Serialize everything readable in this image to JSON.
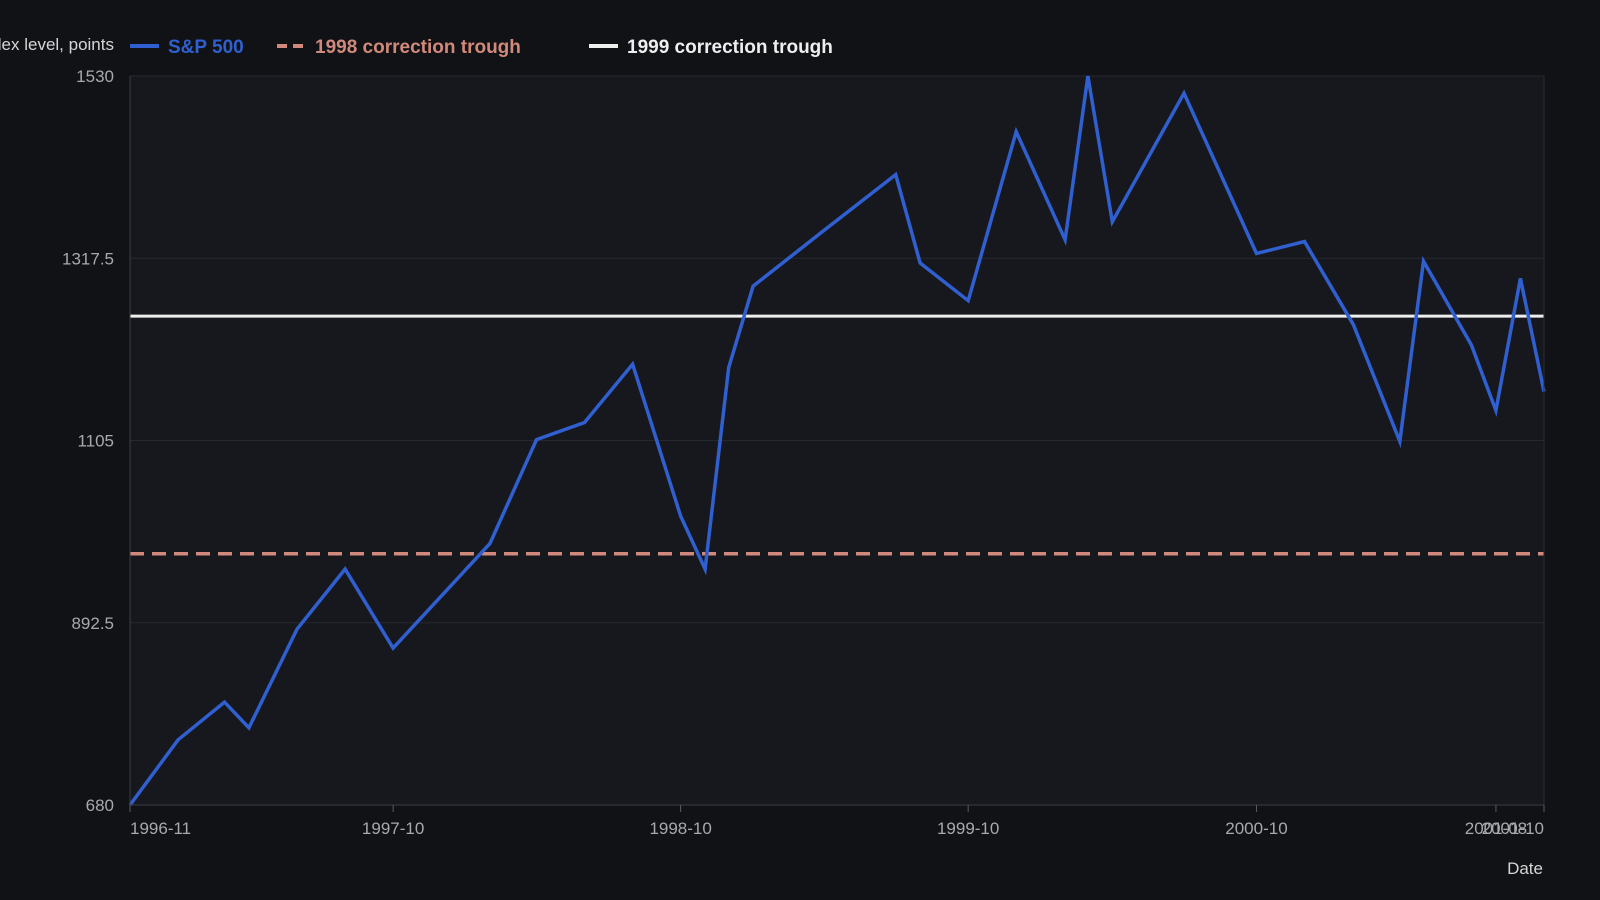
{
  "chart_data": {
    "type": "line",
    "ylabel": "Index level, points",
    "xlabel": "Date",
    "y_ticks": [
      "680",
      "892.5",
      "1105",
      "1317.5",
      "1530"
    ],
    "x_ticks": [
      {
        "label": "1996-11",
        "date": "1996-11-01"
      },
      {
        "label": "1997-10",
        "date": "1997-10-01"
      },
      {
        "label": "1998-10",
        "date": "1998-10-01"
      },
      {
        "label": "1999-10",
        "date": "1999-10-01"
      },
      {
        "label": "2000-10",
        "date": "2000-10-01"
      },
      {
        "label": "2001-08",
        "date": "2001-08-01"
      },
      {
        "label": "2001-10",
        "date": "2001-10-01"
      }
    ],
    "ylim": [
      680,
      1530
    ],
    "xlim": [
      "1996-11-01",
      "2001-10-01"
    ],
    "grid": true,
    "legend_position": "top",
    "series": [
      {
        "name": "S&P 500",
        "color": "#2f5fd0",
        "style": "solid",
        "points": [
          {
            "x": "1996-11-01",
            "y": 680
          },
          {
            "x": "1997-01-01",
            "y": 756
          },
          {
            "x": "1997-03-01",
            "y": 800
          },
          {
            "x": "1997-04-01",
            "y": 770
          },
          {
            "x": "1997-06-01",
            "y": 885
          },
          {
            "x": "1997-08-01",
            "y": 955
          },
          {
            "x": "1997-10-01",
            "y": 863
          },
          {
            "x": "1998-02-01",
            "y": 985
          },
          {
            "x": "1998-04-01",
            "y": 1106
          },
          {
            "x": "1998-06-01",
            "y": 1126
          },
          {
            "x": "1998-08-01",
            "y": 1194
          },
          {
            "x": "1998-10-01",
            "y": 1017
          },
          {
            "x": "1998-11-01",
            "y": 955
          },
          {
            "x": "1998-12-01",
            "y": 1190
          },
          {
            "x": "1999-01-01",
            "y": 1285
          },
          {
            "x": "1999-04-01",
            "y": 1350
          },
          {
            "x": "1999-07-01",
            "y": 1415
          },
          {
            "x": "1999-08-01",
            "y": 1312
          },
          {
            "x": "1999-10-01",
            "y": 1268
          },
          {
            "x": "1999-12-01",
            "y": 1465
          },
          {
            "x": "2000-02-01",
            "y": 1339
          },
          {
            "x": "2000-03-01",
            "y": 1530
          },
          {
            "x": "2000-04-01",
            "y": 1360
          },
          {
            "x": "2000-07-01",
            "y": 1510
          },
          {
            "x": "2000-10-01",
            "y": 1323
          },
          {
            "x": "2000-12-01",
            "y": 1337
          },
          {
            "x": "2001-02-01",
            "y": 1240
          },
          {
            "x": "2001-04-01",
            "y": 1104
          },
          {
            "x": "2001-05-01",
            "y": 1314
          },
          {
            "x": "2001-07-01",
            "y": 1216
          },
          {
            "x": "2001-08-01",
            "y": 1140
          },
          {
            "x": "2001-09-01",
            "y": 1294
          },
          {
            "x": "2001-10-01",
            "y": 1162
          }
        ]
      },
      {
        "name": "1998 correction trough",
        "color": "#d0897a",
        "style": "dashed",
        "points": [
          {
            "x": "1996-11-01",
            "y": 973
          },
          {
            "x": "2001-10-01",
            "y": 973
          }
        ]
      },
      {
        "name": "1999 correction trough",
        "color": "#eeeeee",
        "style": "solid",
        "points": [
          {
            "x": "1996-11-01",
            "y": 1250
          },
          {
            "x": "2001-10-01",
            "y": 1250
          }
        ]
      }
    ]
  }
}
